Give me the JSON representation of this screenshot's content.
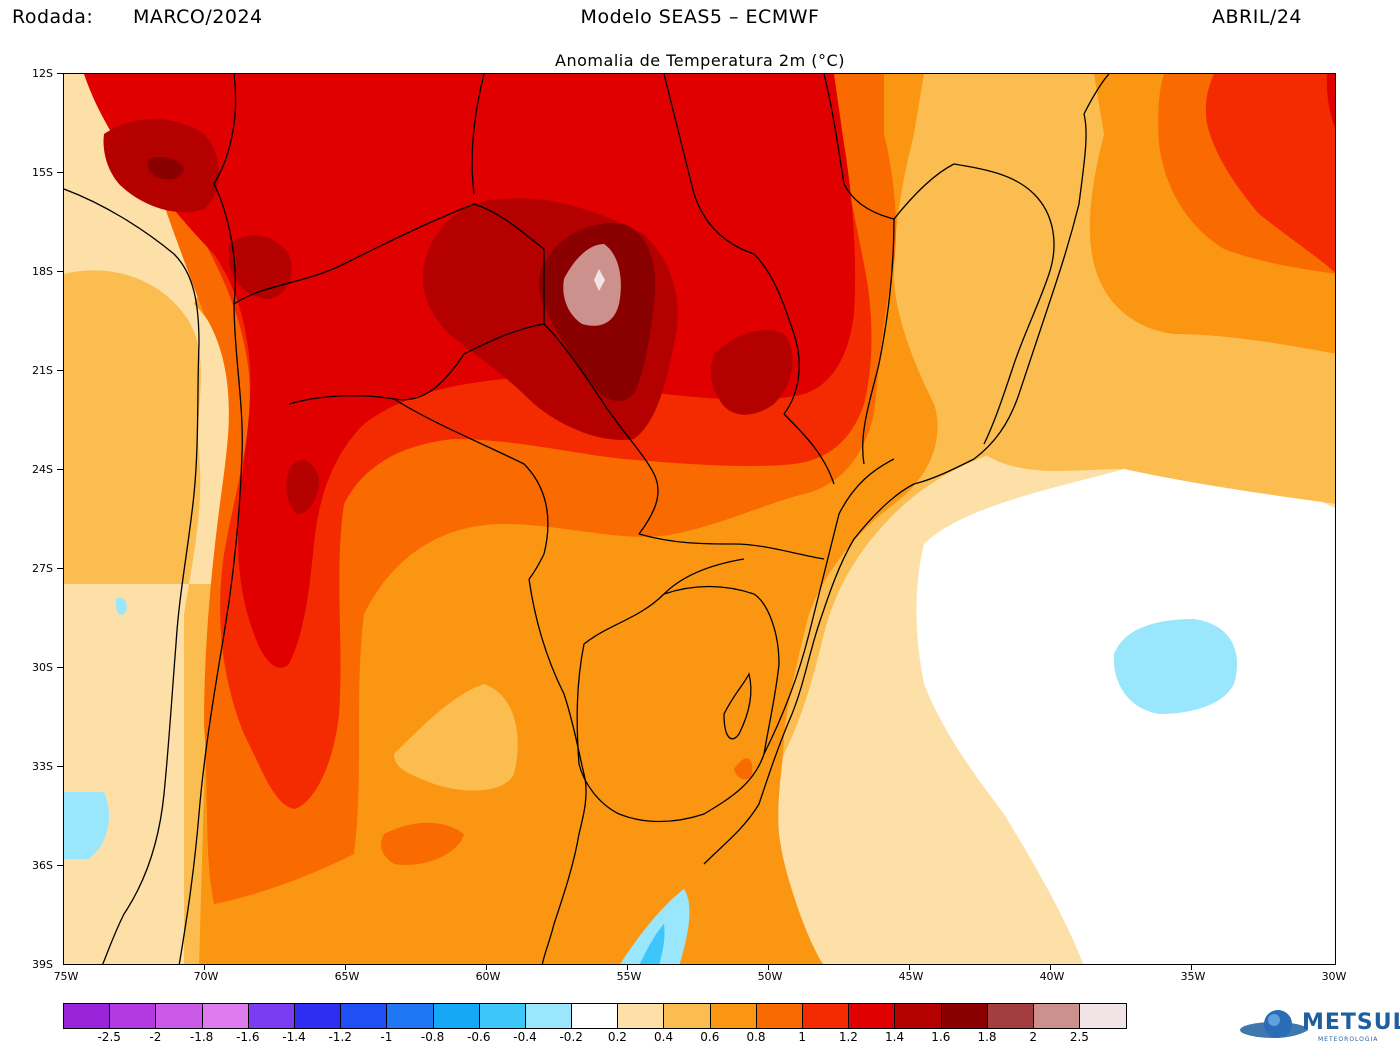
{
  "header": {
    "rodada_label": "Rodada:",
    "rodada_value": "MARCO/2024",
    "model": "Modelo SEAS5 – ECMWF",
    "month": "ABRIL/24"
  },
  "subtitle": "Anomalia de Temperatura 2m (°C)",
  "axes": {
    "lat_labels": [
      "12S",
      "15S",
      "18S",
      "21S",
      "24S",
      "27S",
      "30S",
      "33S",
      "36S",
      "39S"
    ],
    "lon_labels": [
      "75W",
      "70W",
      "65W",
      "60W",
      "55W",
      "50W",
      "45W",
      "40W",
      "35W",
      "30W"
    ],
    "lat_range": [
      -12,
      -39
    ],
    "lon_range": [
      -75,
      -30
    ]
  },
  "colorbar": {
    "colors": [
      "#9a24d8",
      "#b33ae0",
      "#cc5ae8",
      "#dd7bef",
      "#7b3cf2",
      "#2e2ef2",
      "#1f4ff5",
      "#1e78f5",
      "#14a8f5",
      "#3cc6fa",
      "#9ae6fc",
      "#ffffff",
      "#fde0a8",
      "#fbbd50",
      "#fb9612",
      "#f96a00",
      "#f42b00",
      "#e00000",
      "#b50000",
      "#8a0000",
      "#a43e3e",
      "#cc918c",
      "#f2e4e4"
    ],
    "labels": [
      "-2.5",
      "-2",
      "-1.8",
      "-1.6",
      "-1.4",
      "-1.2",
      "-1",
      "-0.8",
      "-0.6",
      "-0.4",
      "-0.2",
      "0.2",
      "0.4",
      "0.6",
      "0.8",
      "1",
      "1.2",
      "1.4",
      "1.6",
      "1.8",
      "2",
      "2.5"
    ]
  },
  "logo": {
    "name": "METSUL",
    "sub": "METEOROLOGIA"
  }
}
